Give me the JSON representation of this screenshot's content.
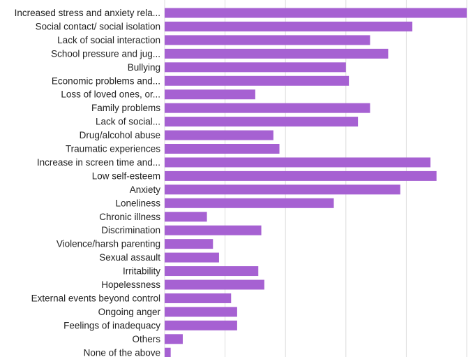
{
  "chart_data": {
    "type": "bar",
    "orientation": "horizontal",
    "title": "",
    "xlabel": "",
    "ylabel": "",
    "grid": true,
    "xlim": [
      0,
      100
    ],
    "color": "#a661d2",
    "categories": [
      "Increased stress and anxiety rela...",
      "Social contact/ social isolation",
      "Lack of social interaction",
      "School pressure and jug...",
      "Bullying",
      "Economic problems and...",
      "Loss of loved ones, or...",
      "Family problems",
      "Lack of social...",
      "Drug/alcohol abuse",
      "Traumatic experiences",
      "Increase in screen time and...",
      "Low self-esteem",
      "Anxiety",
      "Loneliness",
      "Chronic illness",
      "Discrimination",
      "Violence/harsh parenting",
      "Sexual assault",
      "Irritability",
      "Hopelessness",
      "External events beyond control",
      "Ongoing anger",
      "Feelings of inadequacy",
      "Others",
      "None of the above"
    ],
    "values": [
      100,
      82,
      68,
      74,
      60,
      61,
      30,
      68,
      64,
      36,
      38,
      88,
      90,
      78,
      56,
      14,
      32,
      16,
      18,
      31,
      33,
      22,
      24,
      24,
      6,
      2
    ]
  }
}
